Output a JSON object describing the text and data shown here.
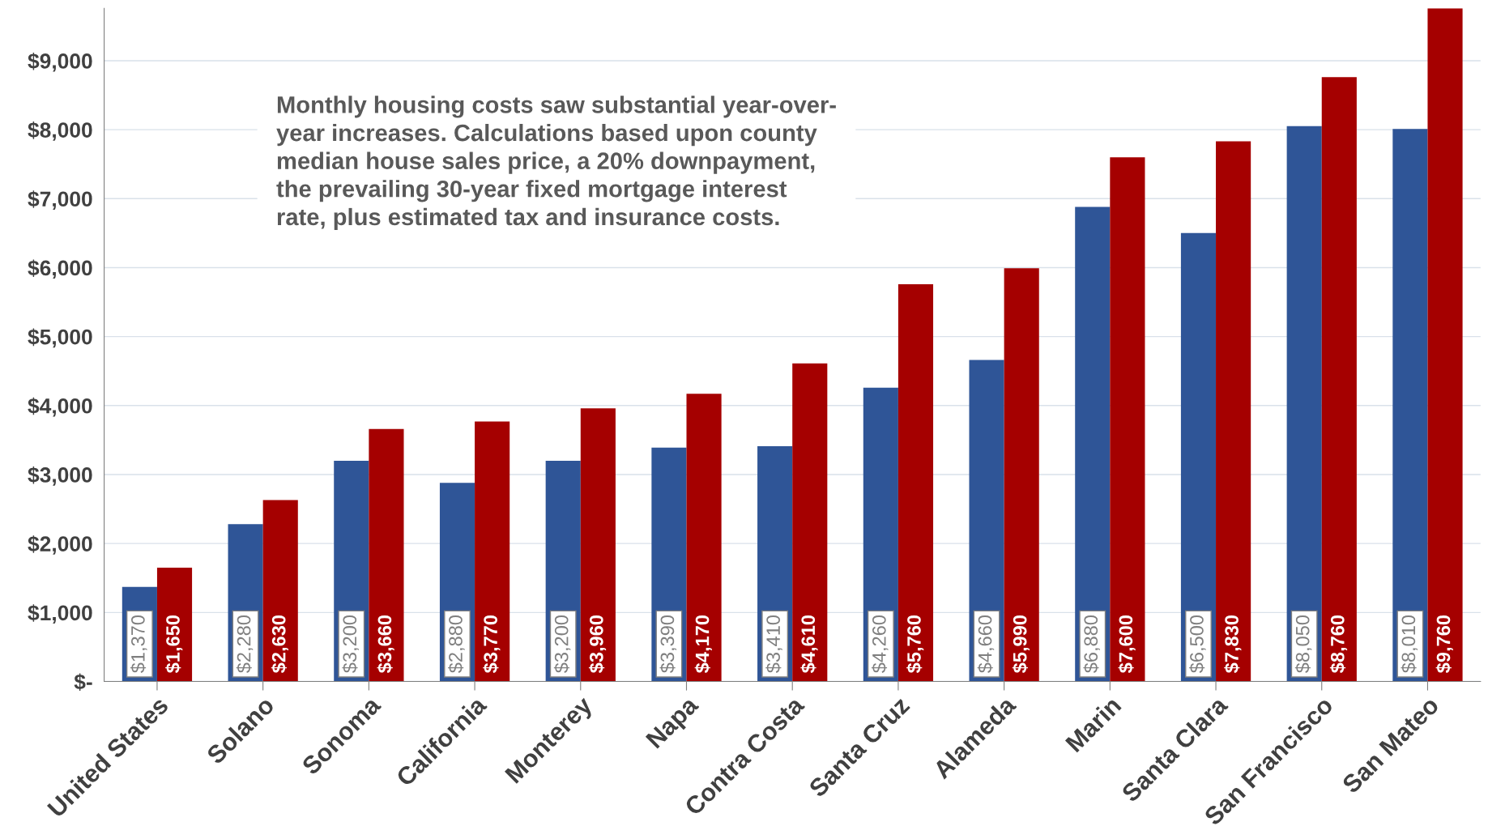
{
  "chart_data": {
    "type": "bar",
    "categories": [
      "United States",
      "Solano",
      "Sonoma",
      "California",
      "Monterey",
      "Napa",
      "Contra Costa",
      "Santa Cruz",
      "Alameda",
      "Marin",
      "Santa Clara",
      "San Francisco",
      "San Mateo"
    ],
    "series": [
      {
        "color": "#2f5597",
        "values": [
          1370,
          2280,
          3200,
          2880,
          3200,
          3390,
          3410,
          4260,
          4660,
          6880,
          6500,
          8050,
          8010
        ],
        "value_labels": [
          "$1,370",
          "$2,280",
          "$3,200",
          "$2,880",
          "$3,200",
          "$3,390",
          "$3,410",
          "$4,260",
          "$4,660",
          "$6,880",
          "$6,500",
          "$8,050",
          "$8,010"
        ]
      },
      {
        "color": "#a50000",
        "values": [
          1650,
          2630,
          3660,
          3770,
          3960,
          4170,
          4610,
          5760,
          5990,
          7600,
          7830,
          8760,
          9760
        ],
        "value_labels": [
          "$1,650",
          "$2,630",
          "$3,660",
          "$3,770",
          "$3,960",
          "$4,170",
          "$4,610",
          "$5,760",
          "$5,990",
          "$7,600",
          "$7,830",
          "$8,760",
          "$9,760"
        ]
      }
    ],
    "ylim": [
      0,
      9760
    ],
    "yticks": [
      {
        "value": 0,
        "label": "$-"
      },
      {
        "value": 1000,
        "label": "$1,000"
      },
      {
        "value": 2000,
        "label": "$2,000"
      },
      {
        "value": 3000,
        "label": "$3,000"
      },
      {
        "value": 4000,
        "label": "$4,000"
      },
      {
        "value": 5000,
        "label": "$5,000"
      },
      {
        "value": 6000,
        "label": "$6,000"
      },
      {
        "value": 7000,
        "label": "$7,000"
      },
      {
        "value": 8000,
        "label": "$8,000"
      },
      {
        "value": 9000,
        "label": "$9,000"
      }
    ],
    "grid": "y",
    "legend": false,
    "annotations": [
      "Monthly housing costs saw substantial year-over-\nyear increases. Calculations based upon county\nmedian house sales price, a 20% downpayment,\nthe prevailing 30-year fixed mortgage interest\nrate, plus estimated tax and insurance costs."
    ]
  }
}
